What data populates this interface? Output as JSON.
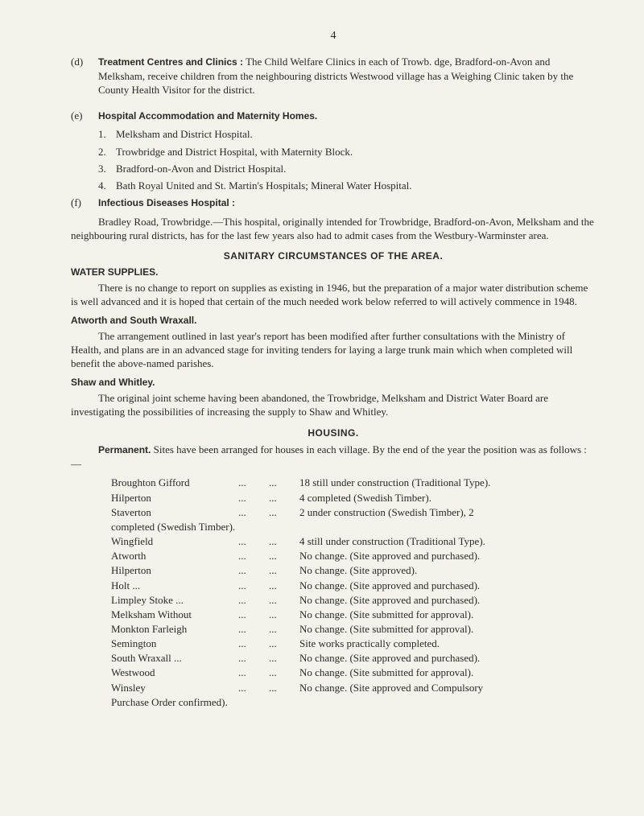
{
  "page_number": "4",
  "item_d": {
    "tag": "(d)",
    "heading": "Treatment Centres and Clinics :",
    "text": "The Child Welfare Clinics in each of Trowb. dge, Bradford-on-Avon and Melksham, receive children from the neighbouring districts Westwood village has a Weighing Clinic taken by the County Health Visitor for the district."
  },
  "item_e": {
    "tag": "(e)",
    "heading": "Hospital Accommodation and Maternity Homes.",
    "list": [
      {
        "n": "1.",
        "t": "Melksham and District Hospital."
      },
      {
        "n": "2.",
        "t": "Trowbridge and District Hospital, with Maternity Block."
      },
      {
        "n": "3.",
        "t": "Bradford-on-Avon and District Hospital."
      },
      {
        "n": "4.",
        "t": "Bath Royal United and St. Martin's Hospitals; Mineral Water Hospital."
      }
    ]
  },
  "item_f": {
    "tag": "(f)",
    "heading": "Infectious Diseases Hospital :",
    "para": "Bradley Road, Trowbridge.—This hospital, originally intended for Trowbridge, Bradford-on-Avon, Melksham and the neighbouring rural districts, has for the last few years also had to admit cases from the Westbury-Warminster area."
  },
  "sanitary_heading": "SANITARY  CIRCUMSTANCES  OF  THE  AREA.",
  "water": {
    "heading": "WATER  SUPPLIES.",
    "para": "There is no change to report on supplies as existing in 1946, but the preparation of a major water distribution scheme is well advanced and it is hoped that certain of the much needed work below referred to will actively commence in 1948."
  },
  "atworth": {
    "heading": "Atworth and South Wraxall.",
    "para": "The arrangement outlined in last year's report has been modified after further consultations with the Ministry of Health, and plans are in an advanced stage for inviting tenders for laying a large trunk main which when completed will benefit the above-named parishes."
  },
  "shaw": {
    "heading": "Shaw and Whitley.",
    "para": "The original joint scheme having been abandoned, the Trowbridge, Melksham and District Water Board are investigating the possibilities of increasing the supply to Shaw and Whitley."
  },
  "housing": {
    "heading": "HOUSING.",
    "perm_label": "Permanent.",
    "perm_text": "Sites have been arranged for houses in each village.  By the end of the year the position was as follows :—",
    "rows": [
      {
        "loc": "Broughton Gifford",
        "d1": "...",
        "d2": "...",
        "desc": "18 still under construction (Traditional Type)."
      },
      {
        "loc": "Hilperton",
        "d1": "...",
        "d2": "...",
        "desc": "4 completed (Swedish Timber)."
      },
      {
        "loc": "Staverton",
        "d1": "...",
        "d2": "...",
        "desc": "2 under construction (Swedish Timber), 2"
      },
      {
        "loc": "",
        "d1": "",
        "d2": "",
        "desc": "completed (Swedish Timber).",
        "sub": true
      },
      {
        "loc": "Wingfield",
        "d1": "...",
        "d2": "...",
        "desc": "4 still under construction (Traditional Type)."
      },
      {
        "loc": "Atworth",
        "d1": "...",
        "d2": "...",
        "desc": "No change.  (Site approved and purchased)."
      },
      {
        "loc": "Hilperton",
        "d1": "...",
        "d2": "...",
        "desc": "No change.  (Site approved)."
      },
      {
        "loc": "Holt     ...",
        "d1": "...",
        "d2": "...",
        "desc": "No change.  (Site approved and purchased)."
      },
      {
        "loc": "Limpley Stoke   ...",
        "d1": "...",
        "d2": "...",
        "desc": "No change.  (Site approved and purchased)."
      },
      {
        "loc": "Melksham Without",
        "d1": "...",
        "d2": "...",
        "desc": "No change.  (Site submitted for approval)."
      },
      {
        "loc": "Monkton Farleigh",
        "d1": "...",
        "d2": "...",
        "desc": "No change.  (Site submitted for approval)."
      },
      {
        "loc": "Semington",
        "d1": "...",
        "d2": "...",
        "desc": "Site works practically completed."
      },
      {
        "loc": "South Wraxall   ...",
        "d1": "...",
        "d2": "...",
        "desc": "No change.  (Site approved and purchased)."
      },
      {
        "loc": "Westwood",
        "d1": "...",
        "d2": "...",
        "desc": "No change.  (Site submitted for approval)."
      },
      {
        "loc": "Winsley",
        "d1": "...",
        "d2": "...",
        "desc": "No change.  (Site approved and Compulsory"
      },
      {
        "loc": "",
        "d1": "",
        "d2": "",
        "desc": "Purchase Order confirmed).",
        "sub": true
      }
    ]
  },
  "dots3": "...      ...      ..."
}
